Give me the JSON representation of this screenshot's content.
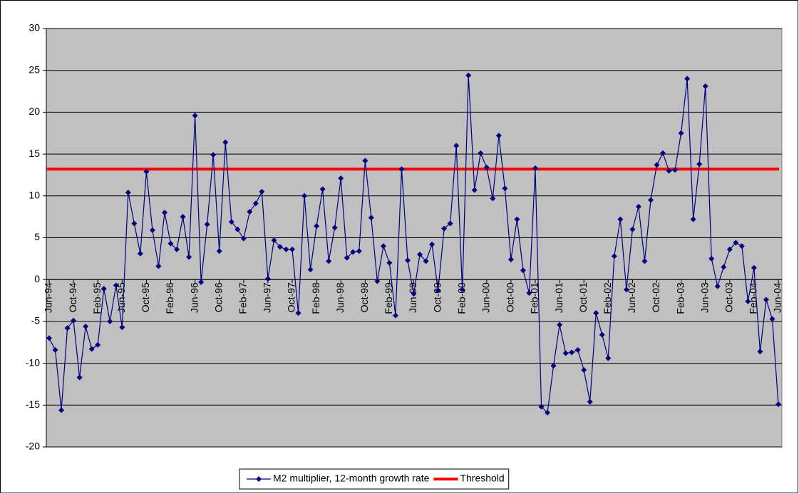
{
  "chart_data": {
    "type": "line",
    "categories": [
      "Jun-94",
      null,
      null,
      null,
      "Oct-94",
      null,
      null,
      null,
      "Feb-95",
      null,
      null,
      null,
      "Jun-95",
      null,
      null,
      null,
      "Oct-95",
      null,
      null,
      null,
      "Feb-96",
      null,
      null,
      null,
      "Jun-96",
      null,
      null,
      null,
      "Oct-96",
      null,
      null,
      null,
      "Feb-97",
      null,
      null,
      null,
      "Jun-97",
      null,
      null,
      null,
      "Oct-97",
      null,
      null,
      null,
      "Feb-98",
      null,
      null,
      null,
      "Jun-98",
      null,
      null,
      null,
      "Oct-98",
      null,
      null,
      null,
      "Feb-99",
      null,
      null,
      null,
      "Jun-99",
      null,
      null,
      null,
      "Oct-99",
      null,
      null,
      null,
      "Feb-00",
      null,
      null,
      null,
      "Jun-00",
      null,
      null,
      null,
      "Oct-00",
      null,
      null,
      null,
      "Feb-01",
      null,
      null,
      null,
      "Jun-01",
      null,
      null,
      null,
      "Oct-01",
      null,
      null,
      null,
      "Feb-02",
      null,
      null,
      null,
      "Jun-02",
      null,
      null,
      null,
      "Oct-02",
      null,
      null,
      null,
      "Feb-03",
      null,
      null,
      null,
      "Jun-03",
      null,
      null,
      null,
      "Oct-03",
      null,
      null,
      null,
      "Feb-04",
      null,
      null,
      null,
      "Jun-04"
    ],
    "series": [
      {
        "name": "M2 multiplier, 12-month growth rate",
        "color": "#000080",
        "values": [
          -7,
          -8.4,
          -15.6,
          -5.8,
          -4.9,
          -11.7,
          -5.6,
          -8.3,
          -7.8,
          -1.1,
          -5,
          -0.7,
          -5.7,
          10.4,
          6.7,
          3.1,
          12.9,
          5.9,
          1.6,
          8,
          4.3,
          3.6,
          7.5,
          2.7,
          19.6,
          -0.3,
          6.6,
          14.9,
          3.4,
          16.4,
          6.9,
          6,
          4.9,
          8.1,
          9.1,
          10.5,
          0.1,
          4.7,
          3.9,
          3.6,
          3.6,
          -4,
          10,
          1.2,
          6.4,
          10.8,
          2.2,
          6.2,
          12.1,
          2.6,
          3.3,
          3.4,
          14.2,
          7.4,
          -0.2,
          4,
          2,
          -4.3,
          13.2,
          2.3,
          -1.7,
          3,
          2.2,
          4.2,
          -1.3,
          6.1,
          6.7,
          16,
          -1.2,
          24.4,
          10.7,
          15.1,
          13.4,
          9.7,
          17.2,
          10.9,
          2.4,
          7.2,
          1.1,
          -1.6,
          13.3,
          -15.2,
          -15.9,
          -10.3,
          -5.4,
          -8.8,
          -8.7,
          -8.4,
          -10.8,
          -14.6,
          -4,
          -6.6,
          -9.4,
          2.8,
          7.2,
          -1.2,
          6,
          8.7,
          2.2,
          9.5,
          13.7,
          15.1,
          13,
          13.1,
          17.5,
          24,
          7.2,
          13.8,
          23.1,
          2.5,
          -0.8,
          1.5,
          3.6,
          4.4,
          4,
          -2.6,
          1.4,
          -8.6,
          -2.4,
          -4.7,
          -14.9
        ]
      }
    ],
    "reference_lines": [
      {
        "name": "Threshold",
        "color": "#ff0000",
        "value": 13.2
      }
    ],
    "ylim": [
      -20,
      30
    ],
    "yticks": [
      -20,
      -15,
      -10,
      -5,
      0,
      5,
      10,
      15,
      20,
      25,
      30
    ],
    "grid": true,
    "legend": "bottom"
  }
}
